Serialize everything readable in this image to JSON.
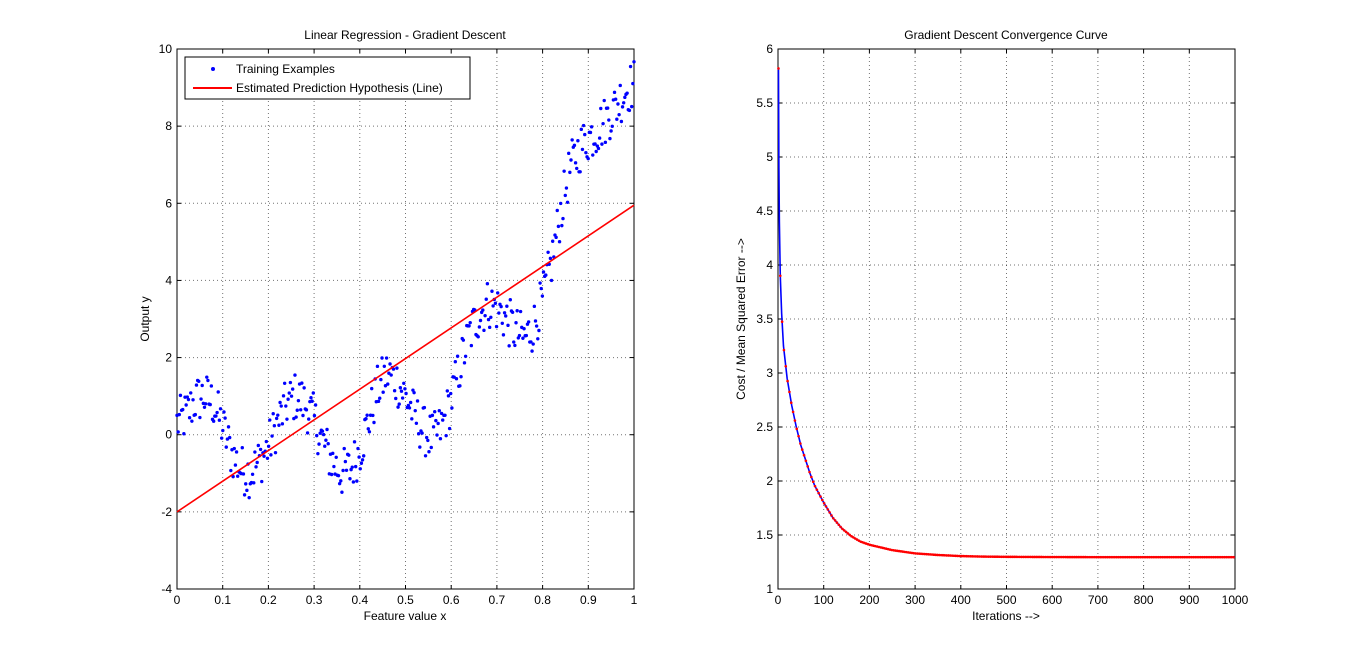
{
  "chart_data": [
    {
      "type": "scatter",
      "title": "Linear Regression - Gradient Descent",
      "xlabel": "Feature value x",
      "ylabel": "Output y",
      "xlim": [
        0,
        1
      ],
      "ylim": [
        -4,
        10
      ],
      "xticks": [
        "0",
        "0.1",
        "0.2",
        "0.3",
        "0.4",
        "0.5",
        "0.6",
        "0.7",
        "0.8",
        "0.9",
        "1"
      ],
      "yticks": [
        "-4",
        "-2",
        "0",
        "2",
        "4",
        "6",
        "8",
        "10"
      ],
      "grid": true,
      "legend_position": "top-left",
      "series": [
        {
          "name": "Training Examples",
          "kind": "points",
          "color": "#0000ff",
          "x": [
            0.0,
            0.02,
            0.04,
            0.06,
            0.08,
            0.1,
            0.12,
            0.14,
            0.16,
            0.18,
            0.2,
            0.22,
            0.24,
            0.26,
            0.28,
            0.3,
            0.32,
            0.34,
            0.36,
            0.38,
            0.4,
            0.42,
            0.44,
            0.46,
            0.48,
            0.5,
            0.52,
            0.54,
            0.56,
            0.58,
            0.6,
            0.62,
            0.64,
            0.66,
            0.68,
            0.7,
            0.72,
            0.74,
            0.76,
            0.78,
            0.8,
            0.82,
            0.84,
            0.86,
            0.88,
            0.9,
            0.92,
            0.94,
            0.96,
            0.98,
            1.0
          ],
          "y": [
            0.3,
            0.5,
            0.9,
            1.0,
            0.8,
            0.2,
            -0.5,
            -0.9,
            -1.0,
            -0.7,
            -0.3,
            0.3,
            0.8,
            1.0,
            0.8,
            0.4,
            -0.2,
            -0.7,
            -1.0,
            -0.9,
            -0.4,
            0.4,
            1.2,
            1.6,
            1.4,
            1.0,
            0.5,
            0.1,
            -0.1,
            0.2,
            0.9,
            1.8,
            2.6,
            3.1,
            3.4,
            3.3,
            3.0,
            2.7,
            2.5,
            2.8,
            3.5,
            4.5,
            5.8,
            6.9,
            7.4,
            7.7,
            7.9,
            8.2,
            8.5,
            8.9,
            9.1
          ]
        },
        {
          "name": "Estimated Prediction Hypothesis (Line)",
          "kind": "line",
          "color": "#ff0000",
          "x": [
            0,
            1
          ],
          "y": [
            -2.0,
            5.95
          ]
        }
      ]
    },
    {
      "type": "line",
      "title": "Gradient Descent Convergence Curve",
      "xlabel": "Iterations -->",
      "ylabel": "Cost / Mean Squared Error -->",
      "xlim": [
        0,
        1000
      ],
      "ylim": [
        1,
        6
      ],
      "xticks": [
        "0",
        "100",
        "200",
        "300",
        "400",
        "500",
        "600",
        "700",
        "800",
        "900",
        "1000"
      ],
      "yticks": [
        "1",
        "1.5",
        "2",
        "2.5",
        "3",
        "3.5",
        "4",
        "4.5",
        "5",
        "5.5",
        "6"
      ],
      "grid": true,
      "series": [
        {
          "kind": "line-with-markers",
          "line_color": "#0000ff",
          "marker_color": "#ff0000",
          "x": [
            1,
            2,
            3,
            5,
            8,
            12,
            20,
            30,
            40,
            50,
            60,
            70,
            80,
            90,
            100,
            120,
            140,
            160,
            180,
            200,
            250,
            300,
            350,
            400,
            450,
            500,
            600,
            700,
            800,
            900,
            1000
          ],
          "y": [
            5.82,
            4.9,
            4.4,
            3.9,
            3.55,
            3.25,
            2.95,
            2.7,
            2.5,
            2.33,
            2.2,
            2.07,
            1.96,
            1.88,
            1.8,
            1.66,
            1.56,
            1.49,
            1.44,
            1.41,
            1.36,
            1.33,
            1.315,
            1.305,
            1.3,
            1.298,
            1.296,
            1.295,
            1.295,
            1.295,
            1.295
          ]
        }
      ]
    }
  ]
}
